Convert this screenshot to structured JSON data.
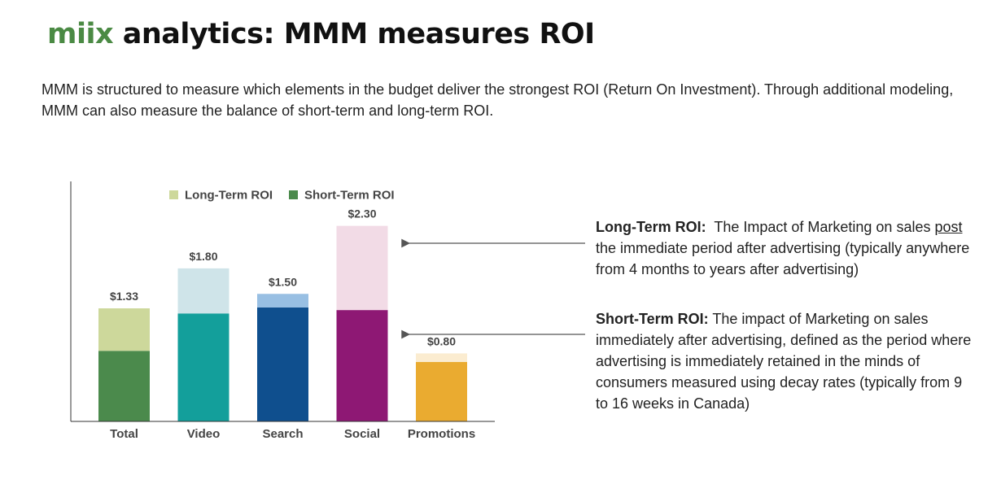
{
  "header": {
    "brand": "miix",
    "title": "analytics:  MMM measures ROI"
  },
  "intro": "MMM is structured to measure which elements in the budget deliver the strongest ROI (Return On Investment). Through additional modeling, MMM can also measure the balance of short-term and long-term ROI.",
  "callouts": {
    "long_term": {
      "label": "Long-Term ROI:",
      "text_a": "The Impact of Marketing on sales",
      "underlined": "post",
      "text_b": "the immediate period after advertising (typically anywhere from 4 months to years after advertising)"
    },
    "short_term": {
      "label": "Short-Term ROI:",
      "text": "The impact of Marketing on sales immediately after advertising, defined as the period where advertising is immediately retained in the minds of consumers measured using decay rates (typically from 9 to 16 weeks in Canada)"
    }
  },
  "chart_data": {
    "type": "bar",
    "stacked": true,
    "categories": [
      "Total",
      "Video",
      "Search",
      "Social",
      "Promotions"
    ],
    "totals": [
      1.33,
      1.8,
      1.5,
      2.3,
      0.8
    ],
    "total_labels": [
      "$1.33",
      "$1.80",
      "$1.50",
      "$2.30",
      "$0.80"
    ],
    "series": [
      {
        "name": "Short-Term ROI",
        "values": [
          0.83,
          1.27,
          1.34,
          1.31,
          0.7
        ],
        "colors": [
          "#4b8a4c",
          "#139f9b",
          "#0f4f8e",
          "#8e1874",
          "#eaab30"
        ]
      },
      {
        "name": "Long-Term ROI",
        "values": [
          0.5,
          0.53,
          0.16,
          0.99,
          0.1
        ],
        "colors": [
          "#cdd89b",
          "#cfe4e9",
          "#98bfe3",
          "#f2dbe6",
          "#fbecd0"
        ]
      }
    ],
    "legend_colors": [
      "#cdd89b",
      "#4b8a4c"
    ],
    "ylim": [
      0,
      2.5
    ],
    "legend_position": "top",
    "grid": false
  }
}
